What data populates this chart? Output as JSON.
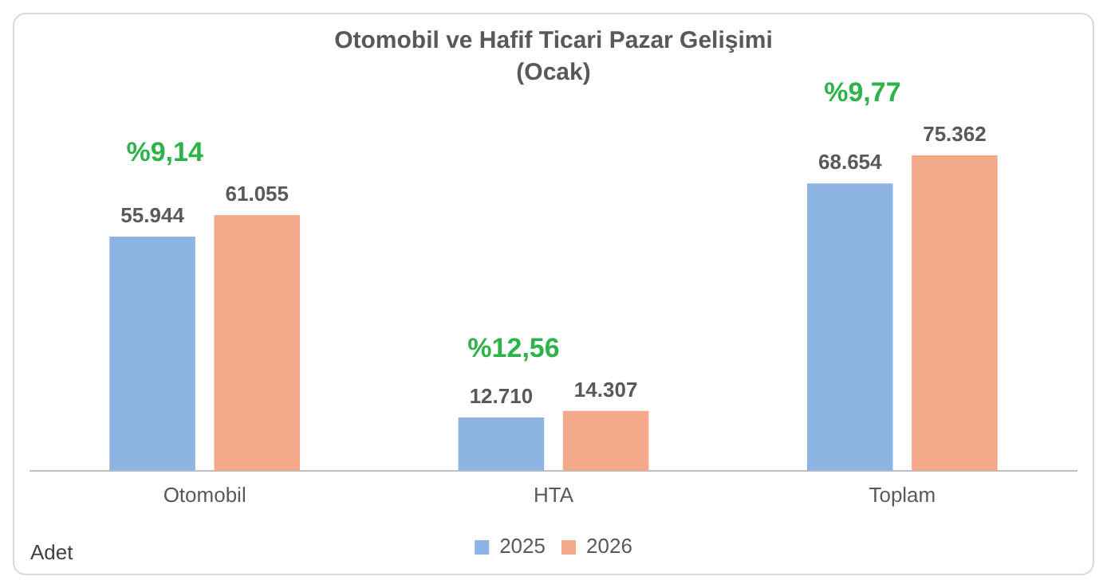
{
  "chart_data": {
    "type": "bar",
    "title": "Otomobil ve Hafif Ticari Pazar Gelişimi",
    "subtitle": "(Ocak)",
    "categories": [
      "Otomobil",
      "HTA",
      "Toplam"
    ],
    "series": [
      {
        "name": "2025",
        "color": "#8db4e2",
        "values": [
          55944,
          12710,
          68654
        ],
        "value_labels": [
          "55.944",
          "12.710",
          "68.654"
        ]
      },
      {
        "name": "2026",
        "color": "#f5a98b",
        "values": [
          61055,
          14307,
          75362
        ],
        "value_labels": [
          "61.055",
          "14.307",
          "75.362"
        ]
      }
    ],
    "annotations": [
      "%9,14",
      "%12,56",
      "%9,77",
      "Adet"
    ],
    "grid": false,
    "legend": "bottom"
  }
}
